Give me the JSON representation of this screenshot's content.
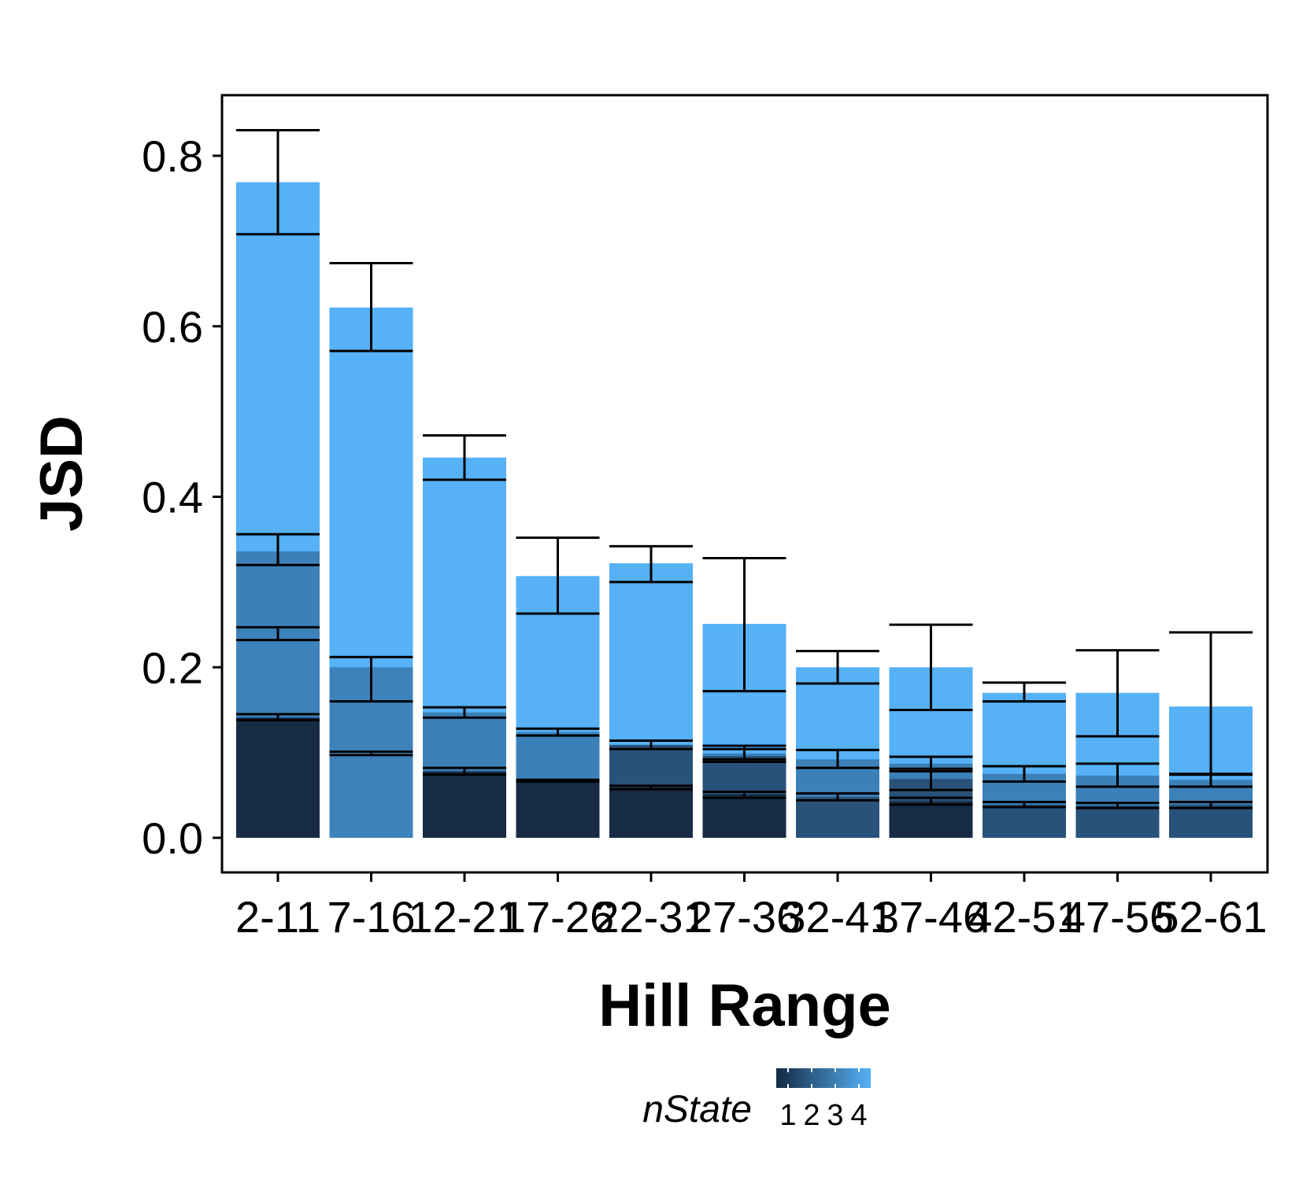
{
  "chart_data": {
    "type": "bar",
    "xlabel": "Hill Range",
    "ylabel": "JSD",
    "ylim": [
      -0.04,
      0.87
    ],
    "yticks": [
      0.0,
      0.2,
      0.4,
      0.6,
      0.8
    ],
    "ytick_labels": [
      "0.0",
      "0.2",
      "0.4",
      "0.6",
      "0.8"
    ],
    "categories": [
      "2-11",
      "7-16",
      "12-21",
      "17-26",
      "22-31",
      "27-36",
      "32-41",
      "37-46",
      "42-51",
      "47-56",
      "52-61"
    ],
    "grid": false,
    "stacked": false,
    "note_overlap": "Bars for each nState are drawn on top of one another (overlapping, not stacked).",
    "series": [
      {
        "nState": 1,
        "color": "#172b45",
        "values": [
          0.141,
          null,
          0.078,
          0.067,
          0.059,
          0.051,
          null,
          0.043,
          null,
          null,
          null
        ],
        "err_low": [
          0.138,
          null,
          0.074,
          0.066,
          0.057,
          0.047,
          null,
          0.039,
          null,
          null,
          null
        ],
        "err_high": [
          0.145,
          null,
          0.082,
          0.068,
          0.061,
          0.054,
          null,
          0.047,
          null,
          null,
          null
        ]
      },
      {
        "nState": 2,
        "color": "#28527a",
        "values": [
          null,
          null,
          null,
          null,
          0.109,
          0.096,
          0.048,
          0.069,
          0.039,
          0.038,
          0.039
        ],
        "err_low": [
          null,
          null,
          null,
          null,
          0.104,
          0.089,
          0.044,
          0.056,
          0.036,
          0.035,
          0.035
        ],
        "err_high": [
          null,
          null,
          null,
          null,
          0.114,
          0.104,
          0.052,
          0.081,
          0.042,
          0.041,
          0.042
        ]
      },
      {
        "nState": 3,
        "color": "#3c80b8",
        "values": [
          0.336,
          0.099,
          0.147,
          0.124,
          null,
          0.099,
          0.092,
          0.087,
          0.075,
          0.073,
          0.068
        ],
        "err_low": [
          0.32,
          0.097,
          0.141,
          0.12,
          null,
          0.092,
          0.082,
          0.078,
          0.066,
          0.06,
          0.06
        ],
        "err_high": [
          0.356,
          0.101,
          0.153,
          0.128,
          null,
          0.108,
          0.103,
          0.095,
          0.084,
          0.087,
          0.075
        ]
      },
      {
        "nState": 3,
        "color": "#3e82bb",
        "values": [
          0.24,
          0.2,
          null,
          null,
          null,
          null,
          null,
          null,
          null,
          null,
          null
        ],
        "err_low": [
          0.232,
          0.16,
          null,
          null,
          null,
          null,
          null,
          null,
          null,
          null,
          null
        ],
        "err_high": [
          0.247,
          0.212,
          null,
          null,
          null,
          null,
          null,
          null,
          null,
          null,
          null
        ]
      },
      {
        "nState": 4,
        "color": "#56b1f7",
        "values": [
          0.769,
          0.622,
          0.446,
          0.307,
          0.322,
          0.251,
          0.2,
          0.2,
          0.17,
          0.17,
          0.154
        ],
        "err_low": [
          0.708,
          0.571,
          0.42,
          0.263,
          0.3,
          0.172,
          0.181,
          0.15,
          0.16,
          0.119,
          0.074
        ],
        "err_high": [
          0.83,
          0.674,
          0.472,
          0.352,
          0.342,
          0.328,
          0.219,
          0.25,
          0.182,
          0.22,
          0.241
        ]
      }
    ],
    "legend": {
      "title": "nState",
      "type": "colorbar",
      "labels": [
        "1",
        "2",
        "3",
        "4"
      ],
      "colors": [
        "#132b43",
        "#56b1f7"
      ],
      "position": "bottom"
    }
  }
}
